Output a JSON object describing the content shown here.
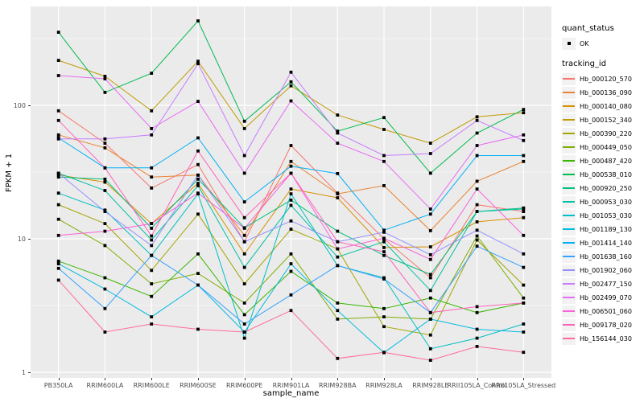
{
  "chart_data": {
    "type": "line",
    "title": "",
    "xlabel": "sample_name",
    "ylabel": "FPKM + 1",
    "y_scale": "log10",
    "y_ticks": [
      1,
      10,
      100
    ],
    "y_minor_ticks": [
      3.162,
      31.62,
      316.2
    ],
    "ylim_log": [
      0.91,
      550
    ],
    "grid": true,
    "legend_position": "right",
    "panel_bg": "#EBEBEB",
    "grid_color": "#FFFFFF",
    "point_color": "#000000",
    "tick_text_color": "#4D4D4D",
    "x_categories": [
      "PB350LA",
      "RRIM600LA",
      "RRIM600LE",
      "RRIM600SE",
      "RRIM600PE",
      "RRIM901LA",
      "RRIM928BA",
      "RRIM928LA",
      "RRIM928LE",
      "RRII105LA_Control",
      "RRII105LA_Stressed"
    ],
    "legend": {
      "quant_status_title": "quant_status",
      "quant_status_items": [
        "OK"
      ],
      "tracking_id_title": "tracking_id"
    },
    "series": [
      {
        "name": "Hb_000120_570",
        "color": "#F8766D",
        "values": [
          91,
          52,
          24,
          36,
          9.5,
          50,
          22,
          10,
          5.1,
          18,
          16
        ]
      },
      {
        "name": "Hb_000136_090",
        "color": "#EA8331",
        "values": [
          60,
          48,
          29,
          30,
          10.6,
          38,
          21.7,
          25,
          11.5,
          27,
          38
        ]
      },
      {
        "name": "Hb_000140_080",
        "color": "#D89000",
        "values": [
          30,
          26.6,
          13,
          26,
          7.7,
          23.6,
          20.3,
          8.6,
          8.7,
          13.4,
          14.4
        ]
      },
      {
        "name": "Hb_000152_340",
        "color": "#C09B00",
        "values": [
          217,
          165,
          91,
          214,
          67,
          140,
          84.5,
          66,
          52,
          82,
          88
        ]
      },
      {
        "name": "Hb_000390_220",
        "color": "#A3A500",
        "values": [
          18,
          13,
          5.8,
          15.3,
          4.6,
          11.8,
          8.4,
          2.2,
          1.9,
          9.8,
          4.5
        ]
      },
      {
        "name": "Hb_000449_050",
        "color": "#7CAE00",
        "values": [
          14,
          8.9,
          4.6,
          5.5,
          3.3,
          7.7,
          2.5,
          2.6,
          2.5,
          10.5,
          3.6
        ]
      },
      {
        "name": "Hb_000487_420",
        "color": "#39B600",
        "values": [
          6.8,
          5.1,
          3.7,
          7.7,
          2.7,
          5.7,
          3.3,
          3.0,
          3.6,
          2.8,
          3.3
        ]
      },
      {
        "name": "Hb_000538_010",
        "color": "#00BB4E",
        "values": [
          353,
          125,
          174,
          429,
          76,
          150,
          64,
          81,
          31,
          62,
          93
        ]
      },
      {
        "name": "Hb_000920_250",
        "color": "#00BF7D",
        "values": [
          29,
          28,
          12,
          28,
          12.1,
          19.5,
          11.4,
          7.5,
          5.4,
          16,
          17
        ]
      },
      {
        "name": "Hb_000953_030",
        "color": "#00C1A3",
        "values": [
          31,
          23,
          9.8,
          25,
          6.1,
          17.8,
          7.3,
          9.5,
          4.1,
          16,
          16.7
        ]
      },
      {
        "name": "Hb_001053_030",
        "color": "#00BFC4",
        "values": [
          22,
          16.4,
          7.5,
          21.7,
          1.8,
          21.7,
          6.3,
          5.1,
          1.5,
          1.8,
          2.3
        ]
      },
      {
        "name": "Hb_001189_130",
        "color": "#00BAE0",
        "values": [
          6.5,
          4.2,
          2.6,
          4.5,
          2.0,
          6.5,
          2.9,
          1.4,
          2.5,
          2.1,
          2.0
        ]
      },
      {
        "name": "Hb_001414_140",
        "color": "#00B0F6",
        "values": [
          57,
          34,
          34,
          57,
          18.9,
          35,
          30.8,
          11.6,
          15.3,
          42,
          42
        ]
      },
      {
        "name": "Hb_001638_160",
        "color": "#35A2FF",
        "values": [
          6.0,
          3.0,
          7.5,
          4.5,
          2.3,
          3.8,
          6.3,
          5.0,
          2.8,
          8.8,
          6.1
        ]
      },
      {
        "name": "Hb_001902_060",
        "color": "#9590FF",
        "values": [
          31,
          16,
          8.9,
          30,
          9.5,
          13.6,
          9.5,
          11.2,
          7.6,
          11.6,
          7.7
        ]
      },
      {
        "name": "Hb_002477_150",
        "color": "#C77CFF",
        "values": [
          56,
          56,
          60,
          205,
          42,
          177,
          62,
          42,
          43.5,
          77,
          54.5
        ]
      },
      {
        "name": "Hb_002499_070",
        "color": "#E76BF3",
        "values": [
          167,
          158,
          67,
          107,
          31,
          108,
          52,
          38,
          16.7,
          50,
          60
        ]
      },
      {
        "name": "Hb_006501_060",
        "color": "#FA62DB",
        "values": [
          10.6,
          11.4,
          13,
          22,
          12,
          31,
          8.4,
          10.1,
          7.0,
          23.6,
          10.6
        ]
      },
      {
        "name": "Hb_009178_020",
        "color": "#FF62BC",
        "values": [
          77,
          34,
          10.5,
          45.5,
          14.4,
          31,
          9.5,
          8.0,
          2.8,
          3.1,
          3.3
        ]
      },
      {
        "name": "Hb_156144_030",
        "color": "#FF6A98",
        "values": [
          4.9,
          2.0,
          2.3,
          2.1,
          2.0,
          2.9,
          1.27,
          1.41,
          1.23,
          1.56,
          1.41
        ]
      }
    ]
  }
}
